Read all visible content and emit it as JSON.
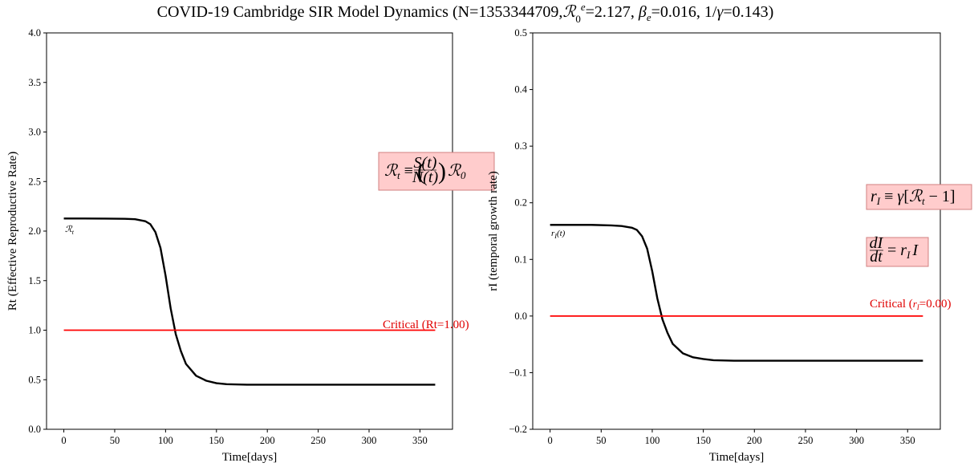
{
  "figure": {
    "title": "COVID-19 Cambridge SIR Model Dynamics (N=1353344709,ℛ₀ᵉ=2.127, βₑ=0.016, 1/γ=0.143)"
  },
  "colors": {
    "curve": "#000000",
    "critical": "#ff0000",
    "box_fill": "#ffcccc",
    "box_edge": "#d08080"
  },
  "chart_data": [
    {
      "type": "line",
      "xlabel": "Time[days]",
      "ylabel": "Rt (Effective Reproductive Rate)",
      "xlim": [
        -17,
        382
      ],
      "ylim": [
        0.0,
        4.0
      ],
      "xticks": [
        0,
        50,
        100,
        150,
        200,
        250,
        300,
        350
      ],
      "yticks": [
        0.0,
        0.5,
        1.0,
        1.5,
        2.0,
        2.5,
        3.0,
        3.5,
        4.0
      ],
      "ytick_labels": [
        "0.0",
        "0.5",
        "1.0",
        "1.5",
        "2.0",
        "2.5",
        "3.0",
        "3.5",
        "4.0"
      ],
      "grid": false,
      "series": [
        {
          "name": "ℛₜ",
          "color": "#000000",
          "x": [
            0,
            20,
            40,
            60,
            70,
            80,
            85,
            90,
            95,
            100,
            105,
            110,
            115,
            120,
            130,
            140,
            150,
            160,
            180,
            200,
            250,
            300,
            365
          ],
          "y": [
            2.127,
            2.127,
            2.126,
            2.124,
            2.12,
            2.1,
            2.07,
            1.99,
            1.83,
            1.55,
            1.22,
            0.96,
            0.79,
            0.66,
            0.54,
            0.49,
            0.465,
            0.455,
            0.45,
            0.45,
            0.45,
            0.45,
            0.45
          ]
        },
        {
          "name": "Critical (Rt=1.00)",
          "color": "#ff0000",
          "x": [
            0,
            365
          ],
          "y": [
            1.0,
            1.0
          ]
        }
      ],
      "annotations": {
        "critical_label": "Critical (Rt=1.00)",
        "curve_label": "ℛₜ",
        "formula": "ℛₜ ≡ (S(t)/N(t)) ℛ₀"
      }
    },
    {
      "type": "line",
      "xlabel": "Time[days]",
      "ylabel": "rI (temporal growth rate)",
      "xlim": [
        -17,
        382
      ],
      "ylim": [
        -0.2,
        0.5
      ],
      "xticks": [
        0,
        50,
        100,
        150,
        200,
        250,
        300,
        350
      ],
      "yticks": [
        -0.2,
        -0.1,
        0.0,
        0.1,
        0.2,
        0.3,
        0.4,
        0.5
      ],
      "ytick_labels": [
        "−0.2",
        "−0.1",
        "0.0",
        "0.1",
        "0.2",
        "0.3",
        "0.4",
        "0.5"
      ],
      "grid": false,
      "series": [
        {
          "name": "rᴵ(t)",
          "color": "#000000",
          "x": [
            0,
            20,
            40,
            60,
            70,
            80,
            85,
            90,
            95,
            100,
            105,
            110,
            115,
            120,
            130,
            140,
            150,
            160,
            180,
            200,
            250,
            300,
            365
          ],
          "y": [
            0.161,
            0.161,
            0.161,
            0.16,
            0.159,
            0.156,
            0.152,
            0.141,
            0.119,
            0.079,
            0.031,
            -0.006,
            -0.03,
            -0.049,
            -0.066,
            -0.073,
            -0.076,
            -0.078,
            -0.079,
            -0.079,
            -0.079,
            -0.079,
            -0.079
          ]
        },
        {
          "name": "Critical (rᴵ=0.00)",
          "color": "#ff0000",
          "x": [
            0,
            365
          ],
          "y": [
            0.0,
            0.0
          ]
        }
      ],
      "annotations": {
        "critical_label": "Critical (rᴵ=0.00)",
        "curve_label": "rᴵ(t)",
        "formula_1": "rᴵ ≡ γ[ℛₜ − 1]",
        "formula_2": "dI/dt = rᴵ I"
      }
    }
  ]
}
